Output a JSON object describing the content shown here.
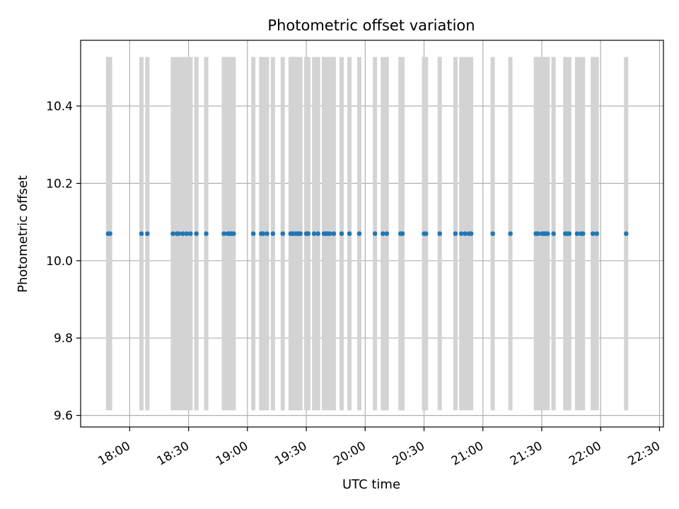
{
  "chart_data": {
    "type": "scatter",
    "title": "Photometric offset variation",
    "xlabel": "UTC time",
    "ylabel": "Photometric offset",
    "xlim": [
      "17:35",
      "22:32"
    ],
    "ylim": [
      9.57,
      10.57
    ],
    "x_ticks": [
      "18:00",
      "18:30",
      "19:00",
      "19:30",
      "20:00",
      "20:30",
      "21:00",
      "21:30",
      "22:00",
      "22:30"
    ],
    "y_ticks": [
      "9.6",
      "9.8",
      "10.0",
      "10.2",
      "10.4"
    ],
    "grid": true,
    "colors": {
      "points": "#1f77b4",
      "error_bars": "#d3d3d3",
      "grid": "#b0b0b0"
    },
    "error_bar_range": [
      9.613,
      10.527
    ],
    "series": [
      {
        "x": [
          "17:49",
          "17:50",
          "18:06",
          "18:09",
          "18:22",
          "18:24",
          "18:25",
          "18:27",
          "18:29",
          "18:31",
          "18:34",
          "18:39",
          "18:48",
          "18:50",
          "18:51",
          "18:52",
          "18:53",
          "19:03",
          "19:07",
          "19:08",
          "19:10",
          "19:13",
          "19:18",
          "19:22",
          "19:23",
          "19:24",
          "19:25",
          "19:26",
          "19:27",
          "19:30",
          "19:31",
          "19:34",
          "19:36",
          "19:39",
          "19:40",
          "19:41",
          "19:42",
          "19:44",
          "19:48",
          "19:52",
          "19:57",
          "20:05",
          "20:09",
          "20:11",
          "20:18",
          "20:19",
          "20:30",
          "20:31",
          "20:38",
          "20:46",
          "20:49",
          "20:51",
          "20:53",
          "20:54",
          "21:05",
          "21:14",
          "21:27",
          "21:28",
          "21:30",
          "21:31",
          "21:32",
          "21:33",
          "21:36",
          "21:42",
          "21:43",
          "21:44",
          "21:48",
          "21:50",
          "21:51",
          "21:56",
          "21:58",
          "22:13"
        ],
        "y": [
          10.07,
          10.07,
          10.07,
          10.07,
          10.07,
          10.07,
          10.07,
          10.07,
          10.07,
          10.07,
          10.07,
          10.07,
          10.07,
          10.07,
          10.07,
          10.07,
          10.07,
          10.07,
          10.07,
          10.07,
          10.07,
          10.07,
          10.07,
          10.07,
          10.07,
          10.07,
          10.07,
          10.07,
          10.07,
          10.07,
          10.07,
          10.07,
          10.07,
          10.07,
          10.07,
          10.07,
          10.07,
          10.07,
          10.07,
          10.07,
          10.07,
          10.07,
          10.07,
          10.07,
          10.07,
          10.07,
          10.07,
          10.07,
          10.07,
          10.07,
          10.07,
          10.07,
          10.07,
          10.07,
          10.07,
          10.07,
          10.07,
          10.07,
          10.07,
          10.07,
          10.07,
          10.07,
          10.07,
          10.07,
          10.07,
          10.07,
          10.07,
          10.07,
          10.07,
          10.07,
          10.07,
          10.07
        ]
      }
    ]
  }
}
